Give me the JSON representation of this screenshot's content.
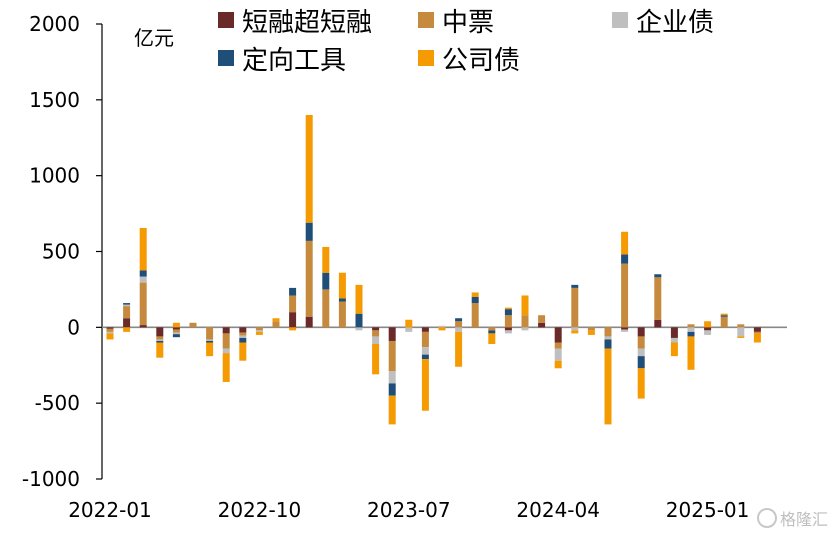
{
  "chart_data": {
    "type": "bar",
    "stacked": true,
    "ylabel": "亿元",
    "ylim": [
      -1000,
      2000
    ],
    "yticks": [
      2000,
      1500,
      1000,
      500,
      0,
      -500,
      -1000
    ],
    "xtick_labels": [
      "2022-01",
      "2022-10",
      "2023-07",
      "2024-04",
      "2025-01"
    ],
    "xtick_index": [
      0,
      9,
      18,
      27,
      36
    ],
    "legend_position": "top",
    "series": [
      {
        "name": "短融超短融",
        "color": "#6b2a2a",
        "values": [
          -10,
          60,
          15,
          -60,
          -15,
          0,
          0,
          -40,
          -35,
          0,
          0,
          100,
          70,
          0,
          0,
          0,
          -20,
          -90,
          0,
          -30,
          0,
          0,
          0,
          0,
          -20,
          0,
          30,
          -100,
          0,
          0,
          0,
          -15,
          -60,
          50,
          -70,
          0,
          -20,
          0,
          0,
          -30
        ]
      },
      {
        "name": "中票",
        "color": "#c68a3e",
        "values": [
          -20,
          80,
          280,
          -20,
          -20,
          30,
          -80,
          -100,
          -20,
          -20,
          40,
          110,
          500,
          250,
          170,
          0,
          -40,
          -200,
          0,
          -100,
          0,
          40,
          160,
          -20,
          80,
          80,
          50,
          -40,
          260,
          -20,
          -60,
          420,
          -80,
          280,
          0,
          20,
          0,
          70,
          20,
          -10
        ]
      },
      {
        "name": "企业债",
        "color": "#bfbfbf",
        "values": [
          -10,
          10,
          40,
          -10,
          -10,
          0,
          -10,
          -30,
          -15,
          -10,
          0,
          0,
          0,
          0,
          0,
          -20,
          -50,
          -80,
          -30,
          -50,
          10,
          -30,
          0,
          0,
          -20,
          -20,
          0,
          -80,
          -20,
          0,
          -20,
          -15,
          -50,
          0,
          -30,
          -30,
          -30,
          0,
          -60,
          0
        ]
      },
      {
        "name": "定向工具",
        "color": "#1f4e79",
        "values": [
          0,
          10,
          40,
          -10,
          -20,
          0,
          -10,
          0,
          -30,
          0,
          0,
          50,
          120,
          110,
          20,
          90,
          0,
          -80,
          0,
          -30,
          0,
          20,
          40,
          -20,
          40,
          0,
          0,
          0,
          20,
          0,
          -60,
          60,
          -80,
          20,
          0,
          -30,
          0,
          10,
          0,
          0
        ]
      },
      {
        "name": "公司债",
        "color": "#f59a00",
        "values": [
          -40,
          -30,
          280,
          -100,
          30,
          0,
          -90,
          -190,
          -120,
          -20,
          20,
          -20,
          710,
          170,
          170,
          190,
          -200,
          -190,
          50,
          -340,
          -20,
          -230,
          30,
          -70,
          10,
          130,
          0,
          -50,
          -20,
          -30,
          -500,
          150,
          -200,
          0,
          -90,
          -220,
          40,
          10,
          -10,
          -60
        ]
      }
    ]
  },
  "legend": {
    "items": [
      {
        "label": "短融超短融",
        "color": "#6b2a2a"
      },
      {
        "label": "中票",
        "color": "#c68a3e"
      },
      {
        "label": "企业债",
        "color": "#bfbfbf"
      },
      {
        "label": "定向工具",
        "color": "#1f4e79"
      },
      {
        "label": "公司债",
        "color": "#f59a00"
      }
    ]
  },
  "watermark": {
    "text": "格隆汇"
  }
}
